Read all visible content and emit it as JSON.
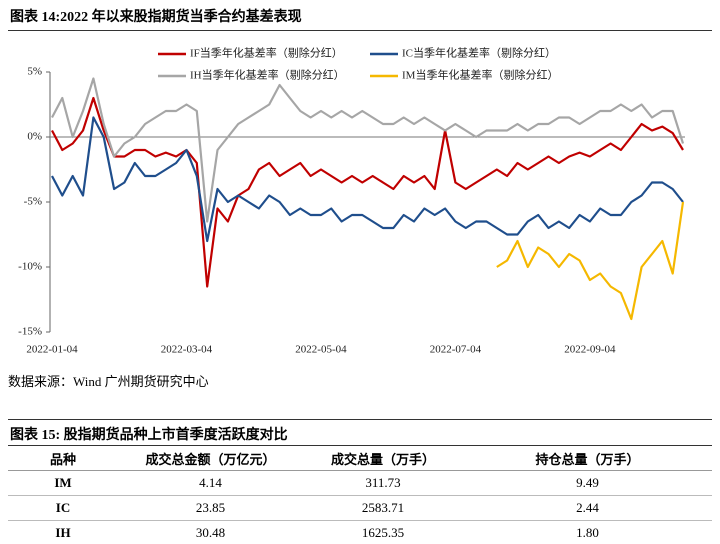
{
  "figure_title": "图表 14:2022 年以来股指期货当季合约基差表现",
  "chart_data": {
    "type": "line",
    "categories": [
      "2022-01-04",
      null,
      null,
      null,
      null,
      null,
      null,
      null,
      null,
      null,
      null,
      null,
      null,
      "2022-03-04",
      null,
      null,
      null,
      null,
      null,
      null,
      null,
      null,
      null,
      null,
      null,
      null,
      "2022-05-04",
      null,
      null,
      null,
      null,
      null,
      null,
      null,
      null,
      null,
      null,
      null,
      null,
      "2022-07-04",
      null,
      null,
      null,
      null,
      null,
      null,
      null,
      null,
      null,
      null,
      null,
      null,
      "2022-09-04",
      null,
      null,
      null,
      null,
      null,
      null,
      null,
      null,
      null
    ],
    "series": [
      {
        "name": "IF当季年化基差率（剔除分红）",
        "color": "#c00000",
        "values": [
          0.5,
          -1,
          -0.5,
          0.5,
          3,
          0.5,
          -1.5,
          -1.5,
          -1,
          -1,
          -1.5,
          -1.2,
          -1.5,
          -1,
          -2,
          -11.5,
          -5.5,
          -6.5,
          -4.5,
          -4,
          -2.5,
          -2,
          -3,
          -2.5,
          -2,
          -3,
          -2.5,
          -3,
          -3.5,
          -3,
          -3.5,
          -3,
          -3.5,
          -4,
          -3,
          -3.5,
          -3,
          -4,
          0.5,
          -3.5,
          -4,
          -3.5,
          -3,
          -2.5,
          -3,
          -2,
          -2.5,
          -2,
          -1.5,
          -2,
          -1.5,
          -1.2,
          -1.5,
          -1,
          -0.5,
          -1,
          0,
          1,
          0.5,
          0.8,
          0.3,
          -1
        ]
      },
      {
        "name": "IC当季年化基差率（剔除分红）",
        "color": "#1f4e8c",
        "values": [
          -3,
          -4.5,
          -3,
          -4.5,
          1.5,
          0,
          -4,
          -3.5,
          -2,
          -3,
          -3,
          -2.5,
          -2,
          -1,
          -3,
          -8,
          -4,
          -5,
          -4.5,
          -5,
          -5.5,
          -4.5,
          -5,
          -6,
          -5.5,
          -6,
          -6,
          -5.5,
          -6.5,
          -6,
          -6,
          -6.5,
          -7,
          -7,
          -6,
          -6.5,
          -5.5,
          -6,
          -5.5,
          -6.5,
          -7,
          -6.5,
          -6.5,
          -7,
          -7.5,
          -7.5,
          -6.5,
          -6,
          -7,
          -6.5,
          -7,
          -6,
          -6.5,
          -5.5,
          -6,
          -6,
          -5,
          -4.5,
          -3.5,
          -3.5,
          -4,
          -5
        ]
      },
      {
        "name": "IH当季年化基差率（剔除分红）",
        "color": "#a6a6a6",
        "values": [
          1.5,
          3,
          0,
          2,
          4.5,
          1,
          -1.5,
          -0.5,
          0,
          1,
          1.5,
          2,
          2,
          2.5,
          2,
          -6.5,
          -1,
          0,
          1,
          1.5,
          2,
          2.5,
          4,
          3,
          2,
          1.5,
          2,
          1.5,
          2,
          1.5,
          2,
          1.5,
          1,
          1,
          1.5,
          1,
          1.5,
          1,
          0.5,
          1,
          0.5,
          0,
          0.5,
          0.5,
          0.5,
          1,
          0.5,
          1,
          1,
          1.5,
          1.5,
          1,
          1.5,
          2,
          2,
          2.5,
          2,
          2.5,
          1.5,
          2,
          2,
          -0.5
        ]
      },
      {
        "name": "IM当季年化基差率（剔除分红）",
        "color": "#f5b800",
        "values": [
          null,
          null,
          null,
          null,
          null,
          null,
          null,
          null,
          null,
          null,
          null,
          null,
          null,
          null,
          null,
          null,
          null,
          null,
          null,
          null,
          null,
          null,
          null,
          null,
          null,
          null,
          null,
          null,
          null,
          null,
          null,
          null,
          null,
          null,
          null,
          null,
          null,
          null,
          null,
          null,
          null,
          null,
          null,
          -10,
          -9.5,
          -8,
          -10,
          -8.5,
          -9,
          -10,
          -9,
          -9.5,
          -11,
          -10.5,
          -11.5,
          -12,
          -14,
          -10,
          -9,
          -8,
          -10.5,
          -5
        ]
      }
    ],
    "ylim": [
      -15,
      5
    ],
    "yticks": [
      {
        "value": 5,
        "label": "5%"
      },
      {
        "value": 0,
        "label": "0%"
      },
      {
        "value": -5,
        "label": "-5%"
      },
      {
        "value": -10,
        "label": "-10%"
      },
      {
        "value": -15,
        "label": "-15%"
      }
    ],
    "grid": false
  },
  "source": "数据来源：Wind 广州期货研究中心",
  "table": {
    "title": "图表 15: 股指期货品种上市首季度活跃度对比",
    "header": [
      "品种",
      "成交总金额（万亿元）",
      "成交总量（万手）",
      "持仓总量（万手）"
    ],
    "rows": [
      [
        "IM",
        "4.14",
        "311.73",
        "9.49"
      ],
      [
        "IC",
        "23.85",
        "2583.71",
        "2.44"
      ],
      [
        "IH",
        "30.48",
        "1625.35",
        "1.80"
      ]
    ]
  }
}
